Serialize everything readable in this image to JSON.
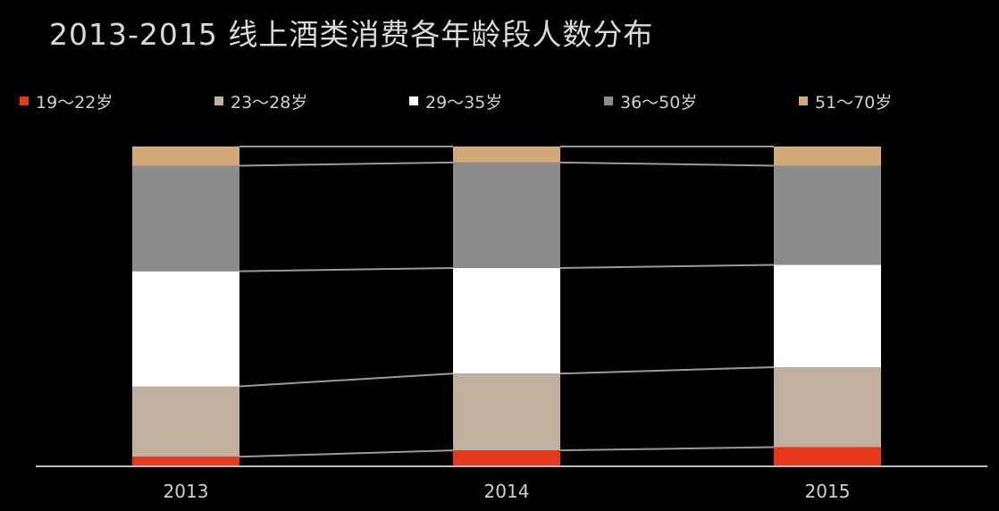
{
  "chart_data": {
    "type": "bar",
    "stacked": true,
    "normalized": true,
    "title": "2013-2015 线上酒类消费各年龄段人数分布",
    "categories": [
      "2013",
      "2014",
      "2015"
    ],
    "legend_position": "top",
    "grid": false,
    "ylim": [
      0,
      100
    ],
    "series": [
      {
        "name": "19～22岁",
        "color": "#e8381c",
        "values": [
          3,
          5,
          6
        ]
      },
      {
        "name": "23～28岁",
        "color": "#bfb09f",
        "values": [
          22,
          24,
          25
        ]
      },
      {
        "name": "29～35岁",
        "color": "#ffffff",
        "values": [
          36,
          33,
          32
        ]
      },
      {
        "name": "36～50岁",
        "color": "#8c8c8c",
        "values": [
          33,
          33,
          31
        ]
      },
      {
        "name": "51～70岁",
        "color": "#d4a97a",
        "values": [
          6,
          5,
          6
        ]
      }
    ],
    "connector_color": "#9a9a9a",
    "axis_color": "#bbbbbb"
  }
}
